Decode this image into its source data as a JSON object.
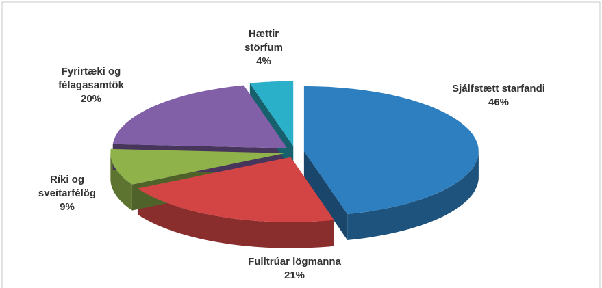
{
  "chart_data": {
    "type": "pie",
    "categories": [
      "Sjálfstætt starfandi",
      "Fulltrúar lögmanna",
      "Ríki og sveitarfélög",
      "Fyrirtæki og félagasamtök",
      "Hættir störfum"
    ],
    "values": [
      46,
      21,
      9,
      20,
      4
    ],
    "value_labels": [
      "46%",
      "21%",
      "9%",
      "20%",
      "4%"
    ],
    "colors": [
      "#2e7fc0",
      "#d34545",
      "#8fb24a",
      "#8160a8",
      "#2ab0c8"
    ]
  }
}
